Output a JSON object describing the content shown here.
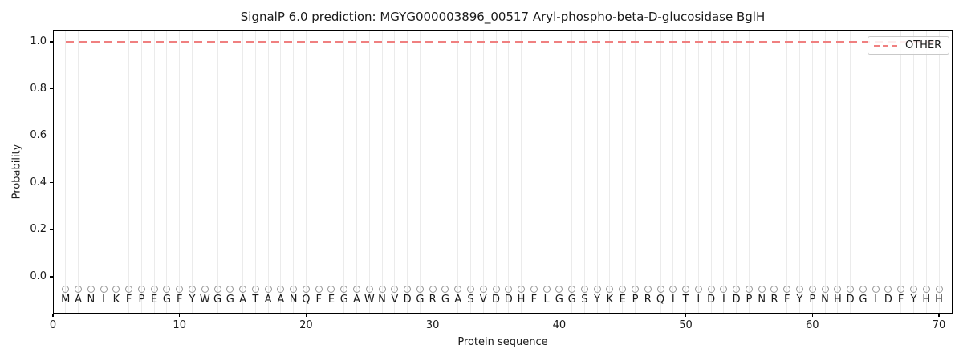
{
  "chart_data": {
    "type": "line",
    "title": "SignalP 6.0 prediction: MGYG000003896_00517 Aryl-phospho-beta-D-glucosidase BglH",
    "xlabel": "Protein sequence",
    "ylabel": "Probability",
    "xlim": [
      0,
      71
    ],
    "ylim": [
      -0.15,
      1.05
    ],
    "x_ticks": [
      {
        "label": "0",
        "value": 0
      },
      {
        "label": "10",
        "value": 10
      },
      {
        "label": "20",
        "value": 20
      },
      {
        "label": "30",
        "value": 30
      },
      {
        "label": "40",
        "value": 40
      },
      {
        "label": "50",
        "value": 50
      },
      {
        "label": "60",
        "value": 60
      },
      {
        "label": "70",
        "value": 70
      }
    ],
    "y_ticks": [
      {
        "label": "0.0",
        "value": 0.0
      },
      {
        "label": "0.2",
        "value": 0.2
      },
      {
        "label": "0.4",
        "value": 0.4
      },
      {
        "label": "0.6",
        "value": 0.6
      },
      {
        "label": "0.8",
        "value": 0.8
      },
      {
        "label": "1.0",
        "value": 1.0
      }
    ],
    "grid": {
      "vertical_per_residue": true,
      "horizontal": false
    },
    "legend": {
      "position": "upper right",
      "entries": [
        {
          "label": "OTHER",
          "line_style": "dashed",
          "color": "#f08080"
        }
      ]
    },
    "series": [
      {
        "name": "OTHER",
        "line_style": "dashed",
        "color": "#f08080",
        "x_start": 1,
        "x_end": 70,
        "y_constant": 1.0
      }
    ],
    "sequence": "MANIKFPEGFYWGGATAANQFEGAWNVDGRGASVDDHFLGGSYKEPRQITIDIDPNRFYPNHDGIDFYHH",
    "sequence_length": 70,
    "residue_markers": {
      "shape": "open-circle",
      "stroke_color": "#999999",
      "y": -0.05
    },
    "residue_letters_y": -0.1,
    "colors": {
      "other_line": "#f08080",
      "gridline": "#ebebeb",
      "axis": "#000000",
      "text": "#1a1a1a",
      "marker_stroke": "#999999"
    }
  }
}
